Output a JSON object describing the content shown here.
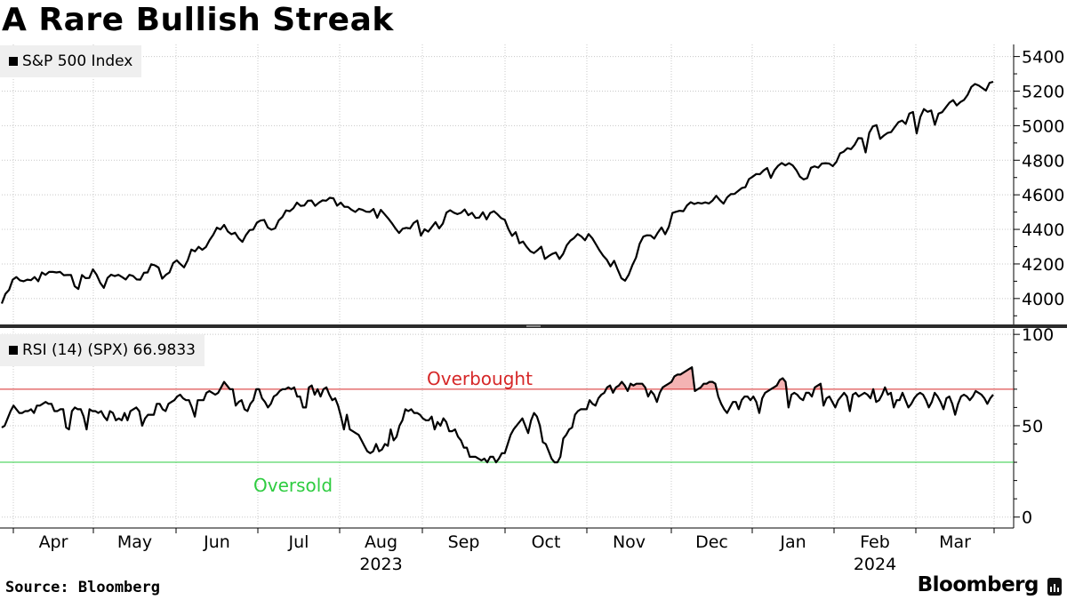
{
  "title": "A Rare Bullish Streak",
  "footer": {
    "source": "Source: Bloomberg",
    "brand": "Bloomberg"
  },
  "colors": {
    "line": "#000000",
    "overbought": "#d62728",
    "oversold": "#2ecc40",
    "overbought_fill": "#f4b3b3",
    "grid": "#c8c8c8",
    "legend_bg": "#efefef"
  },
  "chart_data": [
    {
      "type": "line",
      "name": "S&P 500 Index",
      "legend": "S&P 500 Index",
      "ylim": [
        3850,
        5470
      ],
      "yticks": [
        4000,
        4200,
        4400,
        4600,
        4800,
        5000,
        5200,
        5400
      ],
      "ytick_labels": [
        "4000",
        "4200",
        "4400",
        "4600",
        "4800",
        "5000",
        "5200",
        "5400"
      ],
      "x_index_range": [
        0,
        248
      ],
      "series": [
        {
          "name": "S&P 500 Index",
          "values": [
            3971,
            4027,
            4050,
            4109,
            4124,
            4105,
            4100,
            4109,
            4106,
            4124,
            4100,
            4151,
            4137,
            4154,
            4154,
            4151,
            4154,
            4135,
            4136,
            4136,
            4071,
            4055,
            4136,
            4118,
            4119,
            4169,
            4138,
            4091,
            4062,
            4119,
            4138,
            4130,
            4137,
            4124,
            4110,
            4137,
            4131,
            4110,
            4109,
            4149,
            4151,
            4198,
            4192,
            4179,
            4115,
            4137,
            4151,
            4205,
            4221,
            4199,
            4180,
            4221,
            4283,
            4273,
            4299,
            4282,
            4298,
            4338,
            4369,
            4410,
            4400,
            4426,
            4388,
            4372,
            4381,
            4348,
            4328,
            4368,
            4396,
            4399,
            4439,
            4451,
            4455,
            4411,
            4398,
            4406,
            4452,
            4472,
            4510,
            4505,
            4522,
            4555,
            4536,
            4538,
            4566,
            4567,
            4536,
            4554,
            4568,
            4566,
            4583,
            4580,
            4537,
            4555,
            4531,
            4530,
            4513,
            4501,
            4519,
            4513,
            4502,
            4501,
            4518,
            4467,
            4513,
            4489,
            4464,
            4437,
            4406,
            4379,
            4404,
            4409,
            4405,
            4437,
            4451,
            4364,
            4401,
            4387,
            4414,
            4442,
            4406,
            4433,
            4497,
            4511,
            4497,
            4488,
            4496,
            4515,
            4482,
            4496,
            4466,
            4468,
            4499,
            4458,
            4495,
            4505,
            4487,
            4465,
            4456,
            4402,
            4362,
            4384,
            4320,
            4330,
            4299,
            4274,
            4263,
            4280,
            4300,
            4229,
            4245,
            4258,
            4266,
            4229,
            4258,
            4308,
            4335,
            4350,
            4373,
            4359,
            4337,
            4373,
            4349,
            4314,
            4278,
            4247,
            4224,
            4186,
            4218,
            4166,
            4117,
            4103,
            4138,
            4193,
            4237,
            4317,
            4358,
            4366,
            4365,
            4347,
            4382,
            4411,
            4372,
            4415,
            4495,
            4502,
            4508,
            4505,
            4539,
            4557,
            4547,
            4554,
            4550,
            4556,
            4550,
            4567,
            4594,
            4569,
            4549,
            4585,
            4604,
            4605,
            4622,
            4639,
            4644,
            4691,
            4705,
            4720,
            4719,
            4741,
            4755,
            4698,
            4742,
            4768,
            4784,
            4770,
            4783,
            4770,
            4743,
            4705,
            4689,
            4697,
            4756,
            4765,
            4757,
            4781,
            4783,
            4781,
            4766,
            4791,
            4840,
            4850,
            4870,
            4864,
            4890,
            4928,
            4927,
            4845,
            4959,
            4996,
            5003,
            4924,
            4943,
            4958,
            4963,
            4992,
            5020,
            5030,
            5010,
            5070,
            5079,
            4955,
            5050,
            5096,
            5080,
            5088,
            5005,
            5070,
            5078,
            5106,
            5133,
            5148,
            5117,
            5137,
            5149,
            5179,
            5224,
            5241,
            5233,
            5218,
            5203,
            5248,
            5254
          ]
        }
      ]
    },
    {
      "type": "line",
      "name": "RSI (14) (SPX)",
      "legend": "RSI (14) (SPX) 66.9833",
      "ylim": [
        -5,
        103
      ],
      "yticks": [
        0,
        50,
        100
      ],
      "ytick_labels": [
        "0",
        "50",
        "100"
      ],
      "reference_lines": [
        {
          "label": "Overbought",
          "value": 70
        },
        {
          "label": "Oversold",
          "value": 30
        }
      ],
      "series": [
        {
          "name": "RSI (14) (SPX)",
          "values": [
            49,
            50,
            54,
            58,
            61,
            59,
            57,
            57,
            58,
            58,
            59,
            57,
            61,
            61,
            62,
            63,
            62,
            62,
            58,
            58,
            59,
            59,
            49,
            48,
            58,
            60,
            59,
            59,
            55,
            48,
            59,
            58,
            58,
            57,
            58,
            55,
            53,
            58,
            57,
            53,
            54,
            53,
            57,
            53,
            58,
            59,
            60,
            58,
            50,
            54,
            56,
            56,
            56,
            62,
            62,
            59,
            58,
            62,
            63,
            64,
            66,
            67,
            65,
            64,
            64,
            60,
            55,
            64,
            64,
            64,
            68,
            69,
            68,
            67,
            68,
            71,
            74,
            72,
            70,
            70,
            61,
            63,
            64,
            59,
            58,
            62,
            64,
            70,
            70,
            65,
            63,
            60,
            62,
            66,
            67,
            69,
            70,
            70,
            71,
            70,
            71,
            66,
            66,
            60,
            60,
            71,
            72,
            67,
            70,
            66,
            70,
            71,
            67,
            64,
            65,
            61,
            55,
            48,
            56,
            48,
            47,
            46,
            45,
            42,
            39,
            36,
            35,
            36,
            40,
            36,
            37,
            40,
            39,
            48,
            42,
            44,
            50,
            53,
            59,
            58,
            59,
            57,
            57,
            56,
            54,
            53,
            53,
            55,
            48,
            52,
            50,
            54,
            52,
            47,
            47,
            48,
            44,
            42,
            38,
            38,
            33,
            33,
            33,
            32,
            31,
            32,
            30,
            33,
            33,
            30,
            32,
            35,
            35,
            40,
            45,
            48,
            50,
            52,
            54,
            50,
            46,
            53,
            57,
            55,
            50,
            41,
            40,
            36,
            32,
            30,
            30,
            33,
            43,
            45,
            48,
            49,
            56,
            58,
            59,
            59,
            59,
            64,
            62,
            61,
            65,
            67,
            68,
            71,
            72,
            68,
            71,
            72,
            74,
            72,
            69,
            73,
            72,
            73,
            73,
            73,
            71,
            66,
            69,
            67,
            63,
            68,
            71,
            72,
            73,
            74,
            77,
            78,
            78,
            79,
            80,
            81,
            82,
            69,
            70,
            71,
            73,
            73,
            74,
            74,
            73,
            66,
            62,
            59,
            57,
            60,
            63,
            63,
            59,
            64,
            66,
            66,
            64,
            66,
            63,
            57,
            65,
            68,
            69,
            70,
            71,
            72,
            75,
            76,
            74,
            60,
            67,
            68,
            67,
            65,
            64,
            68,
            68,
            66,
            71,
            72,
            73,
            61,
            65,
            66,
            63,
            60,
            64,
            66,
            68,
            66,
            58,
            67,
            68,
            66,
            67,
            68,
            67,
            65,
            70,
            63,
            64,
            67,
            71,
            67,
            68,
            60,
            64,
            64,
            68,
            64,
            60,
            62,
            65,
            67,
            68,
            67,
            64,
            60,
            63,
            68,
            66,
            63,
            59,
            65,
            66,
            62,
            56,
            62,
            66,
            67,
            66,
            64,
            66,
            69,
            68,
            67,
            65,
            62,
            65,
            67
          ]
        }
      ]
    }
  ],
  "x_axis": {
    "months": [
      "Apr",
      "May",
      "Jun",
      "Jul",
      "Aug",
      "Sep",
      "Oct",
      "Nov",
      "Dec",
      "Jan",
      "Feb",
      "Mar"
    ],
    "years": [
      {
        "label": "2023",
        "under": "Aug"
      },
      {
        "label": "2024",
        "under": "Feb"
      }
    ]
  }
}
